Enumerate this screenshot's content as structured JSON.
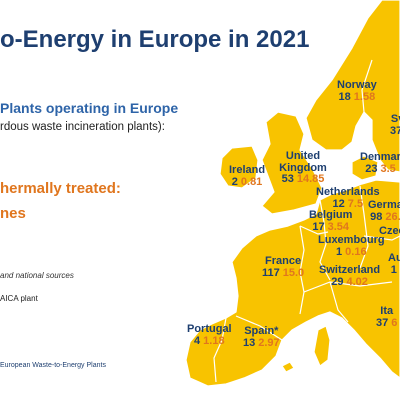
{
  "title": "o-Energy in Europe in 2021",
  "legend": {
    "plants_heading": "Plants operating in Europe",
    "plants_sub": "rdous waste incineration plants):",
    "treated_heading": "hermally treated:",
    "treated_unit": "nes",
    "source_note": "and national sources",
    "plant_note": "AICA plant",
    "footer": "European Waste-to-Energy Plants"
  },
  "colors": {
    "land": "#f8c300",
    "sea": "#ffffff",
    "border": "#ffffff",
    "name": "#1e3f70",
    "tonnes": "#e0761e",
    "title": "#1e3f70"
  },
  "countries": [
    {
      "key": "norway",
      "name": "Norway",
      "plants": "18",
      "tonnes": "1.58"
    },
    {
      "key": "sweden",
      "name": "Sv",
      "plants": "37",
      "tonnes": ""
    },
    {
      "key": "denmark",
      "name": "Denmar",
      "plants": "23",
      "tonnes": "3.5"
    },
    {
      "key": "ireland",
      "name": "Ireland",
      "plants": "2",
      "tonnes": "0.81"
    },
    {
      "key": "uk",
      "name": "United Kingdom",
      "plants": "53",
      "tonnes": "14.85"
    },
    {
      "key": "netherlands",
      "name": "Netherlands",
      "plants": "12",
      "tonnes": "7.5"
    },
    {
      "key": "germany",
      "name": "Germa",
      "plants": "98",
      "tonnes": "26."
    },
    {
      "key": "belgium",
      "name": "Belgium",
      "plants": "17",
      "tonnes": "3.54"
    },
    {
      "key": "czech",
      "name": "Czec",
      "plants": "",
      "tonnes": ""
    },
    {
      "key": "luxembourg",
      "name": "Luxembourg",
      "plants": "1",
      "tonnes": "0.16"
    },
    {
      "key": "austria",
      "name": "Au",
      "plants": "1",
      "tonnes": ""
    },
    {
      "key": "france",
      "name": "France",
      "plants": "117",
      "tonnes": "15.0"
    },
    {
      "key": "switzerland",
      "name": "Switzerland",
      "plants": "29",
      "tonnes": "4.02"
    },
    {
      "key": "portugal",
      "name": "Portugal",
      "plants": "4",
      "tonnes": "1.18"
    },
    {
      "key": "spain",
      "name": "Spain*",
      "plants": "13",
      "tonnes": "2.97"
    },
    {
      "key": "italy",
      "name": "Ita",
      "plants": "37",
      "tonnes": "6"
    }
  ]
}
